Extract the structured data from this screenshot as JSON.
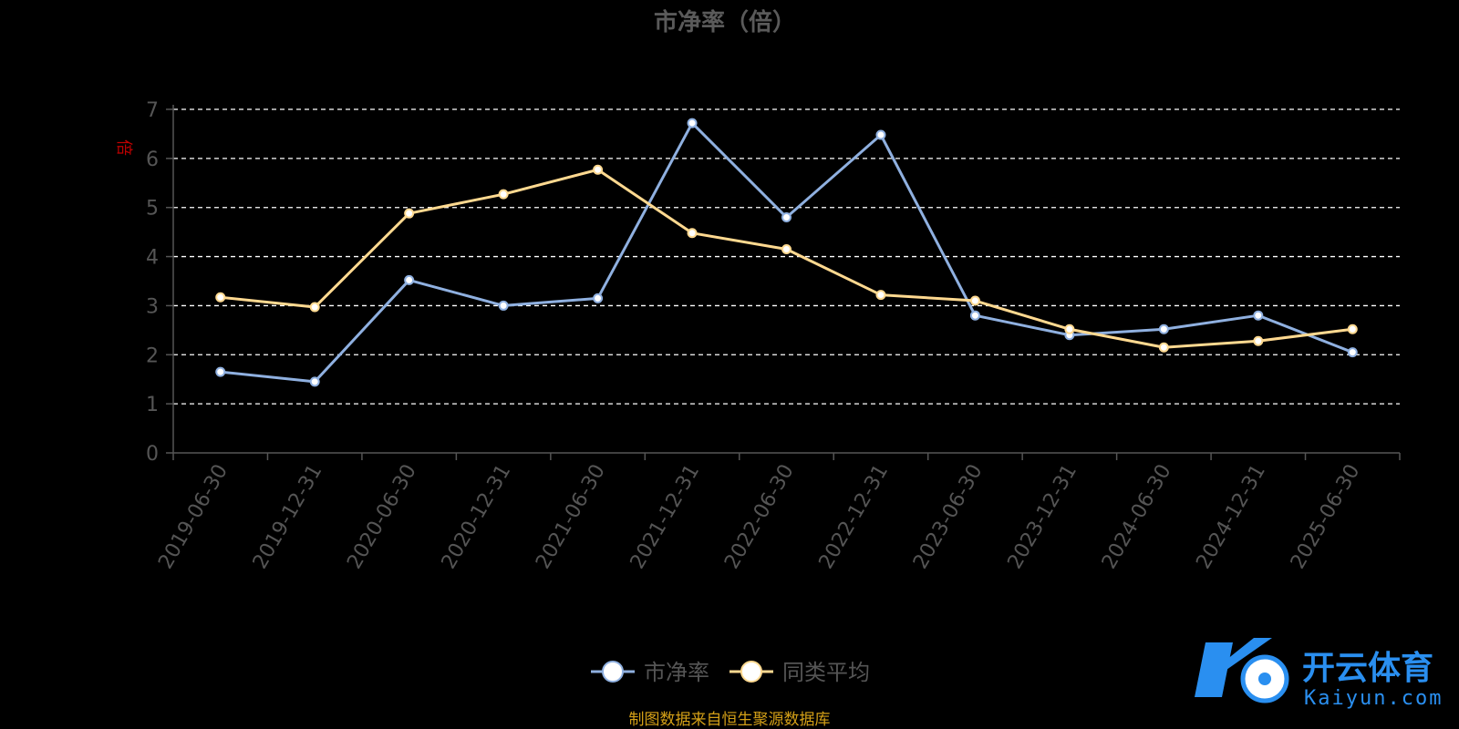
{
  "chart_data": {
    "type": "line",
    "title": "市净率（倍）",
    "ylabel": "倍",
    "ylim": [
      0,
      7
    ],
    "yticks": [
      0,
      1,
      2,
      3,
      4,
      5,
      6,
      7
    ],
    "grid": true,
    "legend_position": "bottom",
    "categories": [
      "2019-06-30",
      "2019-12-31",
      "2020-06-30",
      "2020-12-31",
      "2021-06-30",
      "2021-12-31",
      "2022-06-30",
      "2022-12-31",
      "2023-06-30",
      "2023-12-31",
      "2024-06-30",
      "2024-12-31",
      "2025-06-30"
    ],
    "series": [
      {
        "name": "市净率",
        "color": "#8fb0e0",
        "values": [
          1.65,
          1.45,
          3.52,
          3.0,
          3.15,
          6.72,
          4.8,
          6.48,
          2.8,
          2.4,
          2.52,
          2.8,
          2.05
        ]
      },
      {
        "name": "同类平均",
        "color": "#ffd990",
        "values": [
          3.17,
          2.97,
          4.88,
          5.27,
          5.77,
          4.48,
          4.15,
          3.22,
          3.1,
          2.52,
          2.15,
          2.28,
          2.52
        ]
      }
    ],
    "source_note": "制图数据来自恒生聚源数据库"
  },
  "watermark": {
    "cn": "开云体育",
    "en": "Kaiyun.com"
  }
}
